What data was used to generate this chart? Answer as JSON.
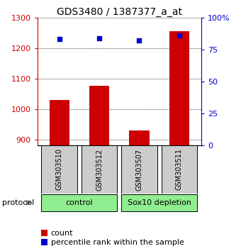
{
  "title": "GDS3480 / 1387377_a_at",
  "samples": [
    "GSM303510",
    "GSM303512",
    "GSM303507",
    "GSM303511"
  ],
  "counts": [
    1030,
    1075,
    930,
    1255
  ],
  "percentile_ranks": [
    83,
    84,
    82,
    86
  ],
  "ylim_left": [
    880,
    1300
  ],
  "ylim_right": [
    0,
    100
  ],
  "yticks_left": [
    900,
    1000,
    1100,
    1200,
    1300
  ],
  "yticks_right": [
    0,
    25,
    50,
    75,
    100
  ],
  "ytick_labels_right": [
    "0",
    "25",
    "50",
    "75",
    "100%"
  ],
  "bar_color": "#cc0000",
  "dot_color": "#0000cc",
  "bar_width": 0.5,
  "groups": [
    {
      "label": "control",
      "color": "#90ee90"
    },
    {
      "label": "Sox10 depletion",
      "color": "#90ee90"
    }
  ],
  "protocol_label": "protocol",
  "legend_count_label": "count",
  "legend_percentile_label": "percentile rank within the sample",
  "background_color": "#ffffff",
  "gridline_color": "#000000",
  "tick_label_color_left": "#cc0000",
  "tick_label_color_right": "#0000cc",
  "sample_box_color": "#cccccc",
  "title_fontsize": 10,
  "axis_fontsize": 8,
  "legend_fontsize": 8,
  "sample_fontsize": 7,
  "protocol_fontsize": 8
}
